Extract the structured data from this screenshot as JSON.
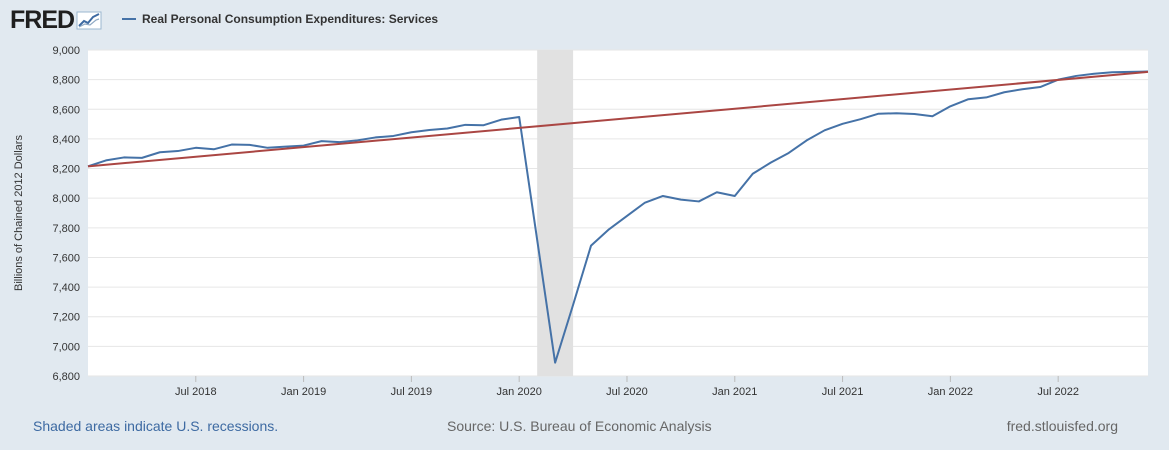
{
  "header": {
    "logo_text": "FRED",
    "logo_icon": "chart-trend-icon",
    "legend_label": "Real Personal Consumption Expenditures: Services"
  },
  "footer": {
    "recession_note": "Shaded areas indicate U.S. recessions.",
    "source": "Source: U.S. Bureau of Economic Analysis",
    "site": "fred.stlouisfed.org"
  },
  "colors": {
    "series": "#4572a7",
    "trend": "#aa4643",
    "recession": "#e1e1e1",
    "background": "#e1e9f0",
    "plot_background": "#ffffff",
    "grid": "#e6e6e6"
  },
  "chart_data": {
    "type": "line",
    "title": "",
    "xlabel": "",
    "ylabel": "Billions of Chained 2012 Dollars",
    "ylim": [
      6800,
      9000
    ],
    "xlim": [
      "2018-01",
      "2022-12"
    ],
    "grid": true,
    "legend_position": "top-left",
    "y_ticks": [
      "6,800",
      "7,000",
      "7,200",
      "7,400",
      "7,600",
      "7,800",
      "8,000",
      "8,200",
      "8,400",
      "8,600",
      "8,800",
      "9,000"
    ],
    "x_ticks": [
      {
        "date": "2018-07",
        "label": "Jul 2018"
      },
      {
        "date": "2019-01",
        "label": "Jan 2019"
      },
      {
        "date": "2019-07",
        "label": "Jul 2019"
      },
      {
        "date": "2020-01",
        "label": "Jan 2020"
      },
      {
        "date": "2020-07",
        "label": "Jul 2020"
      },
      {
        "date": "2021-01",
        "label": "Jan 2021"
      },
      {
        "date": "2021-07",
        "label": "Jul 2021"
      },
      {
        "date": "2022-01",
        "label": "Jan 2022"
      },
      {
        "date": "2022-07",
        "label": "Jul 2022"
      }
    ],
    "recessions": [
      {
        "start": "2020-02",
        "end": "2020-04"
      }
    ],
    "series": [
      {
        "name": "Real Personal Consumption Expenditures: Services",
        "color": "#4572a7",
        "x": [
          "2018-01",
          "2018-02",
          "2018-03",
          "2018-04",
          "2018-05",
          "2018-06",
          "2018-07",
          "2018-08",
          "2018-09",
          "2018-10",
          "2018-11",
          "2018-12",
          "2019-01",
          "2019-02",
          "2019-03",
          "2019-04",
          "2019-05",
          "2019-06",
          "2019-07",
          "2019-08",
          "2019-09",
          "2019-10",
          "2019-11",
          "2019-12",
          "2020-01",
          "2020-02",
          "2020-03",
          "2020-04",
          "2020-05",
          "2020-06",
          "2020-07",
          "2020-08",
          "2020-09",
          "2020-10",
          "2020-11",
          "2020-12",
          "2021-01",
          "2021-02",
          "2021-03",
          "2021-04",
          "2021-05",
          "2021-06",
          "2021-07",
          "2021-08",
          "2021-09",
          "2021-10",
          "2021-11",
          "2021-12",
          "2022-01",
          "2022-02",
          "2022-03",
          "2022-04",
          "2022-05",
          "2022-06",
          "2022-07",
          "2022-08",
          "2022-09",
          "2022-10",
          "2022-11",
          "2022-12"
        ],
        "values": [
          8215,
          8255,
          8275,
          8272,
          8310,
          8318,
          8340,
          8330,
          8362,
          8360,
          8340,
          8348,
          8355,
          8385,
          8378,
          8390,
          8410,
          8420,
          8445,
          8460,
          8470,
          8495,
          8492,
          8530,
          8548,
          7720,
          6890,
          7280,
          7680,
          7790,
          7880,
          7970,
          8015,
          7990,
          7978,
          8040,
          8015,
          8165,
          8240,
          8305,
          8390,
          8458,
          8502,
          8533,
          8570,
          8573,
          8568,
          8553,
          8620,
          8668,
          8680,
          8715,
          8735,
          8750,
          8800,
          8825,
          8840,
          8850,
          8852,
          8855
        ]
      },
      {
        "name": "",
        "color": "#aa4643",
        "x": [
          "2018-01",
          "2022-12"
        ],
        "values": [
          8215,
          8852
        ]
      }
    ]
  }
}
